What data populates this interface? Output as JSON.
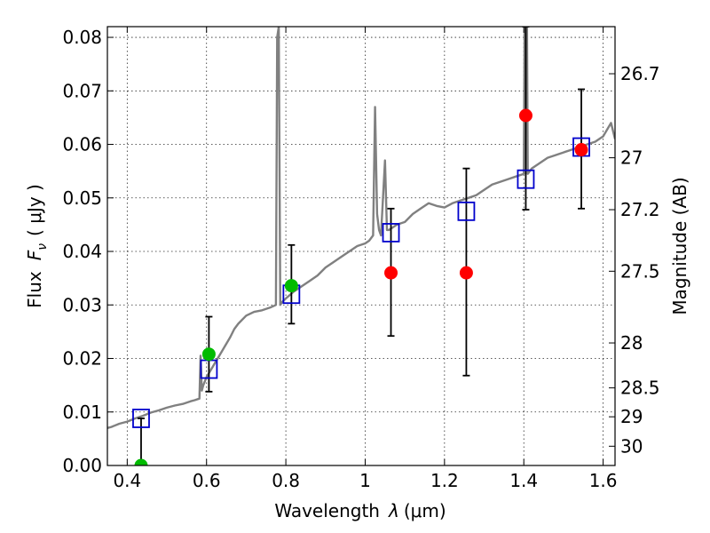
{
  "chart_data": {
    "type": "scatter",
    "title": "",
    "xlabel_prefix": "Wavelength",
    "xlabel_symbol": "λ",
    "xlabel_unit": "(μm)",
    "ylabel_prefix": "Flux",
    "ylabel_symbol": "F",
    "ylabel_subscript": "ν",
    "ylabel_unit": "( μJy )",
    "y2label": "Magnitude (AB)",
    "xlim": [
      0.35,
      1.63
    ],
    "ylim": [
      0.0,
      0.082
    ],
    "grid": true,
    "x_ticks": [
      {
        "value": 0.4,
        "label": "0.4"
      },
      {
        "value": 0.6,
        "label": "0.6"
      },
      {
        "value": 0.8,
        "label": "0.8"
      },
      {
        "value": 1.0,
        "label": "1"
      },
      {
        "value": 1.2,
        "label": "1.2"
      },
      {
        "value": 1.4,
        "label": "1.4"
      },
      {
        "value": 1.6,
        "label": "1.6"
      }
    ],
    "y_ticks": [
      {
        "value": 0.0,
        "label": "0.00"
      },
      {
        "value": 0.01,
        "label": "0.01"
      },
      {
        "value": 0.02,
        "label": "0.02"
      },
      {
        "value": 0.03,
        "label": "0.03"
      },
      {
        "value": 0.04,
        "label": "0.04"
      },
      {
        "value": 0.05,
        "label": "0.05"
      },
      {
        "value": 0.06,
        "label": "0.06"
      },
      {
        "value": 0.07,
        "label": "0.07"
      },
      {
        "value": 0.08,
        "label": "0.08"
      }
    ],
    "y2_ticks": [
      {
        "flux": 0.0732,
        "label": "26.7"
      },
      {
        "flux": 0.0575,
        "label": "27"
      },
      {
        "flux": 0.0478,
        "label": "27.2"
      },
      {
        "flux": 0.0363,
        "label": "27.5"
      },
      {
        "flux": 0.0229,
        "label": "28"
      },
      {
        "flux": 0.0145,
        "label": "28.5"
      },
      {
        "flux": 0.0091,
        "label": "29"
      },
      {
        "flux": 0.0036,
        "label": "30"
      }
    ],
    "series": [
      {
        "name": "model_sed",
        "type": "line",
        "color": "#808080",
        "x": [
          0.35,
          0.36,
          0.38,
          0.4,
          0.42,
          0.44,
          0.46,
          0.48,
          0.5,
          0.52,
          0.54,
          0.56,
          0.57,
          0.582,
          0.585,
          0.588,
          0.592,
          0.6,
          0.62,
          0.64,
          0.66,
          0.67,
          0.68,
          0.7,
          0.72,
          0.74,
          0.76,
          0.775,
          0.778,
          0.782,
          0.786,
          0.79,
          0.8,
          0.82,
          0.84,
          0.86,
          0.88,
          0.9,
          0.92,
          0.94,
          0.96,
          0.98,
          1.0,
          1.01,
          1.02,
          1.025,
          1.03,
          1.035,
          1.04,
          1.05,
          1.055,
          1.06,
          1.08,
          1.1,
          1.12,
          1.14,
          1.16,
          1.18,
          1.2,
          1.22,
          1.24,
          1.26,
          1.28,
          1.3,
          1.32,
          1.34,
          1.36,
          1.38,
          1.4,
          1.402,
          1.405,
          1.408,
          1.41,
          1.42,
          1.44,
          1.46,
          1.48,
          1.5,
          1.52,
          1.54,
          1.56,
          1.58,
          1.6,
          1.62,
          1.63
        ],
        "y": [
          0.007,
          0.0072,
          0.0078,
          0.0082,
          0.0088,
          0.0093,
          0.0099,
          0.0103,
          0.0108,
          0.0112,
          0.0115,
          0.012,
          0.0122,
          0.0125,
          0.0205,
          0.014,
          0.015,
          0.0165,
          0.019,
          0.0215,
          0.024,
          0.0255,
          0.0265,
          0.028,
          0.0287,
          0.029,
          0.0295,
          0.03,
          0.08,
          0.082,
          0.03,
          0.0305,
          0.0312,
          0.0325,
          0.0335,
          0.0345,
          0.0355,
          0.037,
          0.038,
          0.039,
          0.04,
          0.041,
          0.0415,
          0.042,
          0.043,
          0.067,
          0.047,
          0.044,
          0.043,
          0.057,
          0.044,
          0.044,
          0.045,
          0.0455,
          0.047,
          0.048,
          0.049,
          0.0485,
          0.0482,
          0.049,
          0.0495,
          0.05,
          0.0505,
          0.0515,
          0.0525,
          0.053,
          0.0535,
          0.054,
          0.0545,
          0.082,
          0.082,
          0.082,
          0.0545,
          0.0555,
          0.0565,
          0.0575,
          0.058,
          0.0585,
          0.059,
          0.0595,
          0.06,
          0.0605,
          0.0615,
          0.064,
          0.061
        ]
      },
      {
        "name": "model_bands",
        "type": "scatter",
        "marker": "square",
        "color": "#0000cc",
        "x": [
          0.435,
          0.606,
          0.814,
          1.065,
          1.255,
          1.405,
          1.545
        ],
        "y": [
          0.0088,
          0.018,
          0.032,
          0.0435,
          0.0475,
          0.0535,
          0.0595
        ]
      },
      {
        "name": "observed_green",
        "type": "scatter",
        "marker": "circle",
        "color": "#00bb00",
        "x": [
          0.435,
          0.606,
          0.814
        ],
        "y": [
          0.0,
          0.0208,
          0.0336
        ],
        "yerr_low": [
          0.0,
          0.0138,
          0.0265
        ],
        "yerr_high": [
          0.0088,
          0.0278,
          0.0412
        ]
      },
      {
        "name": "observed_red",
        "type": "scatter",
        "marker": "circle",
        "color": "#ff0000",
        "x": [
          1.065,
          1.255,
          1.405,
          1.545
        ],
        "y": [
          0.036,
          0.036,
          0.0654,
          0.059
        ],
        "yerr_low": [
          0.0242,
          0.0168,
          0.0478,
          0.048
        ],
        "yerr_high": [
          0.048,
          0.0555,
          0.082,
          0.0703
        ]
      }
    ]
  }
}
